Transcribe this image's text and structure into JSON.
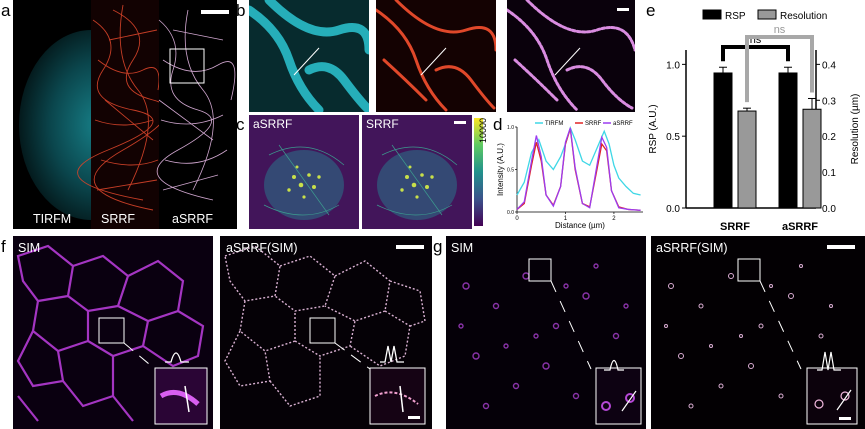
{
  "panels": {
    "a": {
      "letter": "a",
      "labels": [
        "TIRFM",
        "SRRF",
        "aSRRF"
      ]
    },
    "b": {
      "letter": "b"
    },
    "c": {
      "letter": "c",
      "labels": [
        "aSRRF",
        "SRRF"
      ],
      "colorbar_max": "10000"
    },
    "d": {
      "letter": "d"
    },
    "e": {
      "letter": "e"
    },
    "f": {
      "letter": "f",
      "labels": [
        "SIM",
        "aSRRF(SIM)"
      ]
    },
    "g": {
      "letter": "g",
      "labels": [
        "SIM",
        "aSRRF(SIM)"
      ]
    }
  },
  "chart_data": [
    {
      "type": "line",
      "panel": "d",
      "xlabel": "Distance (µm)",
      "ylabel": "Intensity (A.U.)",
      "xlim": [
        0,
        2.6
      ],
      "ylim": [
        0,
        1.0
      ],
      "xticks": [
        "0",
        "1",
        "2"
      ],
      "yticks": [
        "0.0",
        "0.5",
        "1.0"
      ],
      "legend_position": "top",
      "series": [
        {
          "name": "TIRFM",
          "color": "#3fd7e6",
          "x": [
            0,
            0.15,
            0.3,
            0.45,
            0.6,
            0.75,
            0.9,
            1.0,
            1.1,
            1.2,
            1.35,
            1.5,
            1.65,
            1.8,
            1.9,
            2.0,
            2.1,
            2.25,
            2.4,
            2.55
          ],
          "y": [
            0.2,
            0.35,
            0.7,
            0.85,
            0.6,
            0.5,
            0.65,
            0.8,
            0.99,
            0.85,
            0.6,
            0.55,
            0.75,
            0.95,
            0.8,
            0.55,
            0.4,
            0.3,
            0.22,
            0.2
          ]
        },
        {
          "name": "SRRF",
          "color": "#e02424",
          "x": [
            0,
            0.15,
            0.3,
            0.4,
            0.5,
            0.6,
            0.75,
            0.9,
            1.0,
            1.1,
            1.2,
            1.35,
            1.5,
            1.65,
            1.75,
            1.85,
            1.95,
            2.1,
            2.3,
            2.55
          ],
          "y": [
            0.03,
            0.1,
            0.55,
            0.82,
            0.6,
            0.2,
            0.08,
            0.3,
            0.8,
            0.98,
            0.5,
            0.1,
            0.06,
            0.5,
            0.8,
            0.72,
            0.25,
            0.06,
            0.03,
            0.02
          ]
        },
        {
          "name": "aSRRF",
          "color": "#9b3cf0",
          "x": [
            0,
            0.15,
            0.3,
            0.4,
            0.5,
            0.6,
            0.75,
            0.9,
            1.0,
            1.1,
            1.2,
            1.35,
            1.5,
            1.65,
            1.75,
            1.85,
            1.95,
            2.1,
            2.3,
            2.55
          ],
          "y": [
            0.03,
            0.12,
            0.6,
            0.9,
            0.65,
            0.2,
            0.07,
            0.3,
            0.82,
            0.99,
            0.52,
            0.1,
            0.05,
            0.55,
            0.88,
            0.76,
            0.25,
            0.05,
            0.03,
            0.02
          ]
        }
      ]
    },
    {
      "type": "bar",
      "panel": "e",
      "categories": [
        "SRRF",
        "aSRRF"
      ],
      "ylabel": "RSP (A.U.)",
      "y2label": "Resolution (µm)",
      "ylim": [
        0,
        1.1
      ],
      "y2lim": [
        0,
        0.44
      ],
      "yticks": [
        "0.0",
        "0.5",
        "1.0"
      ],
      "y2ticks": [
        "0.0",
        "0.1",
        "0.2",
        "0.3",
        "0.4"
      ],
      "legend_position": "top",
      "series": [
        {
          "name": "RSP",
          "color": "#000000",
          "axis": "left",
          "values": [
            0.94,
            0.94
          ],
          "errors": [
            0.04,
            0.04
          ]
        },
        {
          "name": "Resolution",
          "color": "#999999",
          "axis": "right",
          "values": [
            0.27,
            0.275
          ],
          "errors": [
            0.008,
            0.03
          ]
        }
      ],
      "annotations": [
        "ns",
        "ns"
      ]
    }
  ]
}
